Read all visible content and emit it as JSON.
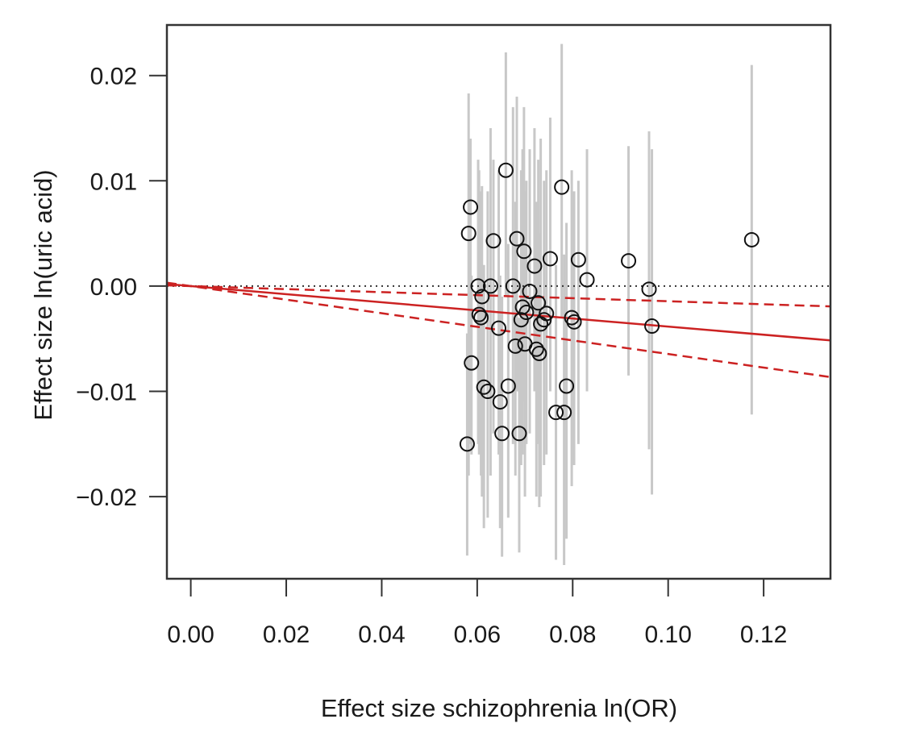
{
  "chart_data": {
    "type": "scatter",
    "title": "",
    "xlabel": "Effect size schizophrenia ln(OR)",
    "ylabel": "Effect size ln(uric acid)",
    "xlim": [
      -0.005,
      0.134
    ],
    "ylim": [
      -0.0278,
      0.0248
    ],
    "x_ticks": [
      {
        "value": 0.0,
        "label": "0.00"
      },
      {
        "value": 0.02,
        "label": "0.02"
      },
      {
        "value": 0.04,
        "label": "0.04"
      },
      {
        "value": 0.06,
        "label": "0.06"
      },
      {
        "value": 0.08,
        "label": "0.08"
      },
      {
        "value": 0.1,
        "label": "0.10"
      },
      {
        "value": 0.12,
        "label": "0.12"
      }
    ],
    "y_ticks": [
      {
        "value": 0.02,
        "label": "0.02"
      },
      {
        "value": 0.01,
        "label": "0.01"
      },
      {
        "value": 0.0,
        "label": "0.00"
      },
      {
        "value": -0.01,
        "label": "−0.01"
      },
      {
        "value": -0.02,
        "label": "−0.02"
      }
    ],
    "grid": false,
    "colors": {
      "points": "#111111",
      "error_bars": "#c8c8c8",
      "fit_line": "#cc2222",
      "reference_line": "#333333",
      "axes": "#333333"
    },
    "reference_line": {
      "y": 0.0,
      "style": "dotted"
    },
    "fit_lines": [
      {
        "style": "solid",
        "intercept": 0.0,
        "slope": -0.0385
      },
      {
        "style": "dashed",
        "intercept": 0.0,
        "slope": -0.0144
      },
      {
        "style": "dashed",
        "intercept": 0.0,
        "slope": -0.0645
      }
    ],
    "points": [
      {
        "x": 0.0579,
        "y": -0.015,
        "lo": -0.0256,
        "hi": -0.0045
      },
      {
        "x": 0.0582,
        "y": 0.005,
        "lo": -0.018,
        "hi": 0.0183
      },
      {
        "x": 0.0586,
        "y": 0.0075,
        "lo": -0.015,
        "hi": 0.014
      },
      {
        "x": 0.0588,
        "y": -0.0073,
        "lo": -0.016,
        "hi": 0.001
      },
      {
        "x": 0.0602,
        "y": 0.0,
        "lo": -0.015,
        "hi": 0.012
      },
      {
        "x": 0.0604,
        "y": -0.0027,
        "lo": -0.016,
        "hi": 0.011
      },
      {
        "x": 0.0608,
        "y": -0.003,
        "lo": -0.018,
        "hi": 0.009
      },
      {
        "x": 0.061,
        "y": -0.001,
        "lo": -0.02,
        "hi": 0.0095
      },
      {
        "x": 0.0614,
        "y": -0.0096,
        "lo": -0.023,
        "hi": 0.002
      },
      {
        "x": 0.0622,
        "y": -0.01,
        "lo": -0.022,
        "hi": 0.009
      },
      {
        "x": 0.0628,
        "y": 0.0,
        "lo": -0.018,
        "hi": 0.015
      },
      {
        "x": 0.0634,
        "y": 0.0043,
        "lo": -0.014,
        "hi": 0.012
      },
      {
        "x": 0.0645,
        "y": -0.004,
        "lo": -0.016,
        "hi": 0.011
      },
      {
        "x": 0.0648,
        "y": -0.011,
        "lo": -0.023,
        "hi": 0.001
      },
      {
        "x": 0.0652,
        "y": -0.014,
        "lo": -0.0257,
        "hi": -0.001
      },
      {
        "x": 0.066,
        "y": 0.011,
        "lo": -0.001,
        "hi": 0.0222
      },
      {
        "x": 0.0665,
        "y": -0.0095,
        "lo": -0.022,
        "hi": 0.004
      },
      {
        "x": 0.0675,
        "y": 0.0,
        "lo": -0.015,
        "hi": 0.017
      },
      {
        "x": 0.068,
        "y": -0.0057,
        "lo": -0.018,
        "hi": 0.008
      },
      {
        "x": 0.0683,
        "y": 0.0045,
        "lo": -0.01,
        "hi": 0.018
      },
      {
        "x": 0.0688,
        "y": -0.014,
        "lo": -0.0253,
        "hi": -0.003
      },
      {
        "x": 0.0692,
        "y": -0.0032,
        "lo": -0.017,
        "hi": 0.011
      },
      {
        "x": 0.0695,
        "y": -0.002,
        "lo": -0.016,
        "hi": 0.013
      },
      {
        "x": 0.0698,
        "y": 0.0033,
        "lo": -0.011,
        "hi": 0.017
      },
      {
        "x": 0.07,
        "y": -0.0055,
        "lo": -0.02,
        "hi": 0.009
      },
      {
        "x": 0.0703,
        "y": -0.0025,
        "lo": -0.015,
        "hi": 0.01
      },
      {
        "x": 0.071,
        "y": -0.0005,
        "lo": -0.014,
        "hi": 0.013
      },
      {
        "x": 0.072,
        "y": 0.0019,
        "lo": -0.01,
        "hi": 0.015
      },
      {
        "x": 0.0724,
        "y": -0.006,
        "lo": -0.02,
        "hi": 0.008
      },
      {
        "x": 0.0728,
        "y": -0.0016,
        "lo": -0.015,
        "hi": 0.012
      },
      {
        "x": 0.073,
        "y": -0.0064,
        "lo": -0.021,
        "hi": 0.005
      },
      {
        "x": 0.0733,
        "y": -0.0036,
        "lo": -0.02,
        "hi": 0.014
      },
      {
        "x": 0.074,
        "y": -0.0032,
        "lo": -0.017,
        "hi": 0.01
      },
      {
        "x": 0.0745,
        "y": -0.0026,
        "lo": -0.016,
        "hi": 0.011
      },
      {
        "x": 0.0753,
        "y": 0.0026,
        "lo": -0.01,
        "hi": 0.016
      },
      {
        "x": 0.0765,
        "y": -0.012,
        "lo": -0.026,
        "hi": 0.002
      },
      {
        "x": 0.0777,
        "y": 0.0094,
        "lo": -0.003,
        "hi": 0.023
      },
      {
        "x": 0.0782,
        "y": -0.012,
        "lo": -0.0265,
        "hi": 0.003
      },
      {
        "x": 0.0787,
        "y": -0.0095,
        "lo": -0.024,
        "hi": 0.006
      },
      {
        "x": 0.0798,
        "y": -0.003,
        "lo": -0.019,
        "hi": 0.011
      },
      {
        "x": 0.0803,
        "y": -0.0034,
        "lo": -0.017,
        "hi": 0.009
      },
      {
        "x": 0.0812,
        "y": 0.0025,
        "lo": -0.015,
        "hi": 0.01
      },
      {
        "x": 0.083,
        "y": 0.0006,
        "lo": -0.01,
        "hi": 0.013
      },
      {
        "x": 0.0917,
        "y": 0.0024,
        "lo": -0.0085,
        "hi": 0.0133
      },
      {
        "x": 0.096,
        "y": -0.0003,
        "lo": -0.0155,
        "hi": 0.0147
      },
      {
        "x": 0.0966,
        "y": -0.0038,
        "lo": -0.0198,
        "hi": 0.013
      },
      {
        "x": 0.1175,
        "y": 0.0044,
        "lo": -0.0122,
        "hi": 0.021
      }
    ]
  }
}
